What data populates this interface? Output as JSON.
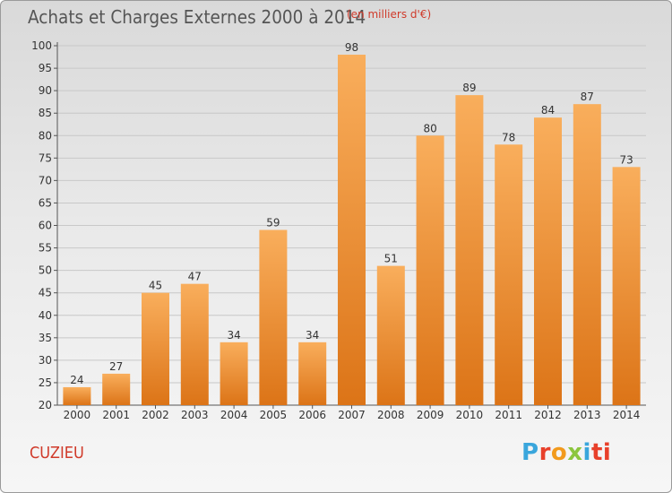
{
  "header": {
    "title": "Achats et Charges Externes 2000 à 2014",
    "subtitle": "(en milliers d'€)"
  },
  "commune": "CUZIEU",
  "logo": {
    "letters": [
      "P",
      "r",
      "o",
      "x",
      "i",
      "ti"
    ],
    "colors": [
      "#3aa6dc",
      "#e8402a",
      "#f29a1d",
      "#8cc63e",
      "#3aa6dc",
      "#e8402a"
    ]
  },
  "colors": {
    "bar_light": "#f9ae5c",
    "bar_dark": "#dc7417",
    "grid": "#c8c8c8",
    "accent_text": "#d03a2a"
  },
  "chart_data": {
    "type": "bar",
    "title": "Achats et Charges Externes 2000 à 2014",
    "subtitle": "(en milliers d'€)",
    "categories": [
      "2000",
      "2001",
      "2002",
      "2003",
      "2004",
      "2005",
      "2006",
      "2007",
      "2008",
      "2009",
      "2010",
      "2011",
      "2012",
      "2013",
      "2014"
    ],
    "values": [
      24,
      27,
      45,
      47,
      34,
      59,
      34,
      98,
      51,
      80,
      89,
      78,
      84,
      87,
      73
    ],
    "ylim": [
      20,
      100
    ],
    "yticks": [
      20,
      25,
      30,
      35,
      40,
      45,
      50,
      55,
      60,
      65,
      70,
      75,
      80,
      85,
      90,
      95,
      100
    ],
    "grid": true,
    "xlabel": "",
    "ylabel": ""
  }
}
